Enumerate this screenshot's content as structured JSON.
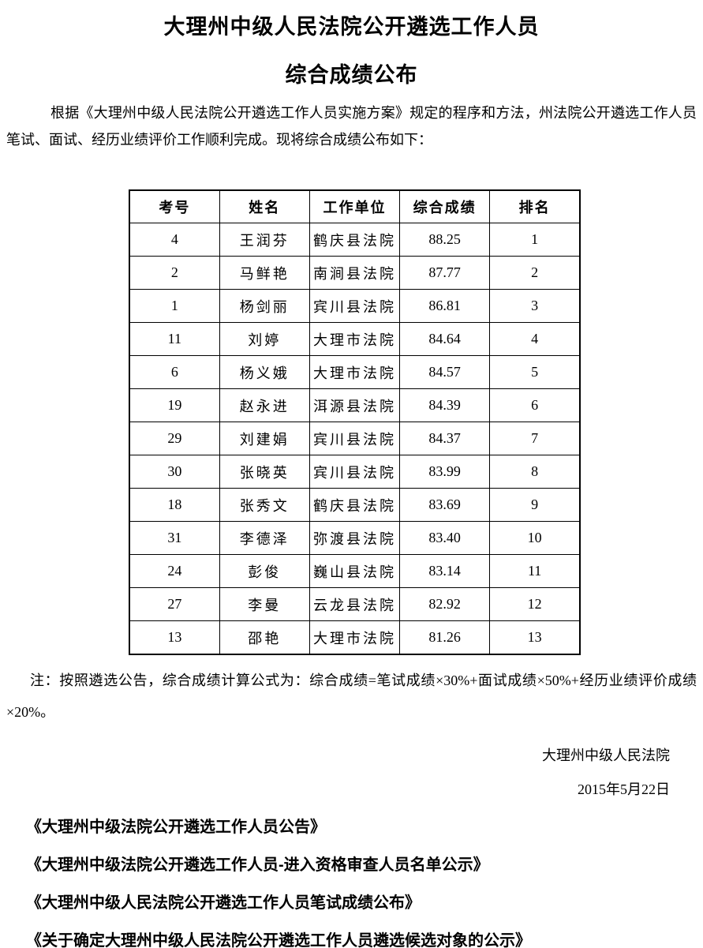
{
  "document": {
    "title_line1": "大理州中级人民法院公开遴选工作人员",
    "title_line2": "综合成绩公布",
    "intro": "根据《大理州中级人民法院公开遴选工作人员实施方案》规定的程序和方法，州法院公开遴选工作人员笔试、面试、经历业绩评价工作顺利完成。现将综合成绩公布如下：",
    "note": "注：按照遴选公告，综合成绩计算公式为：综合成绩=笔试成绩×30%+面试成绩×50%+经历业绩评价成绩×20%。",
    "signature": "大理州中级人民法院",
    "date": "2015年5月22日"
  },
  "table": {
    "headers": [
      "考号",
      "姓名",
      "工作单位",
      "综合成绩",
      "排名"
    ],
    "rows": [
      {
        "exam_number": "4",
        "name": "王润芬",
        "work_unit": "鹤庆县法院",
        "score": "88.25",
        "rank": "1"
      },
      {
        "exam_number": "2",
        "name": "马鲜艳",
        "work_unit": "南涧县法院",
        "score": "87.77",
        "rank": "2"
      },
      {
        "exam_number": "1",
        "name": "杨剑丽",
        "work_unit": "宾川县法院",
        "score": "86.81",
        "rank": "3"
      },
      {
        "exam_number": "11",
        "name": "刘婷",
        "work_unit": "大理市法院",
        "score": "84.64",
        "rank": "4"
      },
      {
        "exam_number": "6",
        "name": "杨义娥",
        "work_unit": "大理市法院",
        "score": "84.57",
        "rank": "5"
      },
      {
        "exam_number": "19",
        "name": "赵永进",
        "work_unit": "洱源县法院",
        "score": "84.39",
        "rank": "6"
      },
      {
        "exam_number": "29",
        "name": "刘建娟",
        "work_unit": "宾川县法院",
        "score": "84.37",
        "rank": "7"
      },
      {
        "exam_number": "30",
        "name": "张晓英",
        "work_unit": "宾川县法院",
        "score": "83.99",
        "rank": "8"
      },
      {
        "exam_number": "18",
        "name": "张秀文",
        "work_unit": "鹤庆县法院",
        "score": "83.69",
        "rank": "9"
      },
      {
        "exam_number": "31",
        "name": "李德泽",
        "work_unit": "弥渡县法院",
        "score": "83.40",
        "rank": "10"
      },
      {
        "exam_number": "24",
        "name": "彭俊",
        "work_unit": "巍山县法院",
        "score": "83.14",
        "rank": "11"
      },
      {
        "exam_number": "27",
        "name": "李曼",
        "work_unit": "云龙县法院",
        "score": "82.92",
        "rank": "12"
      },
      {
        "exam_number": "13",
        "name": "邵艳",
        "work_unit": "大理市法院",
        "score": "81.26",
        "rank": "13"
      }
    ]
  },
  "links": [
    {
      "label": "《大理州中级法院公开遴选工作人员公告》"
    },
    {
      "label": "《大理州中级法院公开遴选工作人员-进入资格审查人员名单公示》"
    },
    {
      "label": "《大理州中级人民法院公开遴选工作人员笔试成绩公布》"
    },
    {
      "label": "《关于确定大理州中级人民法院公开遴选工作人员遴选候选对象的公示》"
    }
  ],
  "colors": {
    "text": "#000000",
    "background": "#ffffff",
    "table_border": "#000000"
  }
}
